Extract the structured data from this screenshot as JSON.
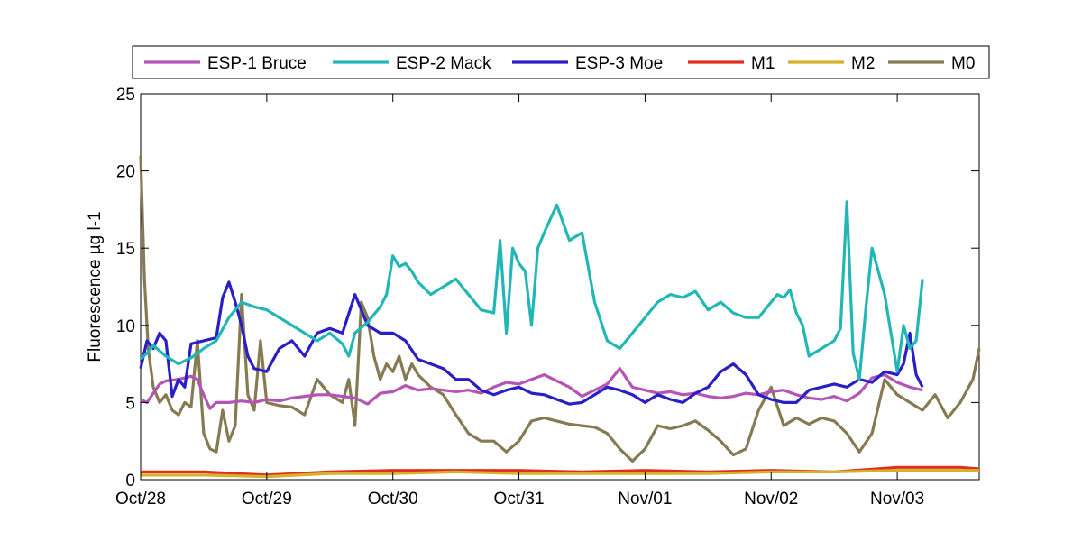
{
  "chart_data": {
    "type": "line",
    "title": "",
    "xlabel": "",
    "ylabel": "Fluorescence µg l-1",
    "ylim": [
      0,
      25
    ],
    "xlim": [
      0,
      6.65
    ],
    "yticks": [
      0,
      5,
      10,
      15,
      20,
      25
    ],
    "xticks": [
      {
        "value": 0,
        "label": "Oct/28"
      },
      {
        "value": 1,
        "label": "Oct/29"
      },
      {
        "value": 2,
        "label": "Oct/30"
      },
      {
        "value": 3,
        "label": "Oct/31"
      },
      {
        "value": 4,
        "label": "Nov/01"
      },
      {
        "value": 5,
        "label": "Nov/02"
      },
      {
        "value": 6,
        "label": "Nov/03"
      }
    ],
    "grid": false,
    "legend_position": "top, outside plot",
    "series": [
      {
        "name": "ESP-1 Bruce",
        "color": "#b455b6",
        "x": [
          0,
          0.05,
          0.1,
          0.15,
          0.2,
          0.3,
          0.4,
          0.45,
          0.5,
          0.55,
          0.6,
          0.7,
          0.8,
          0.9,
          1.0,
          1.1,
          1.2,
          1.3,
          1.4,
          1.5,
          1.6,
          1.7,
          1.8,
          1.9,
          2.0,
          2.1,
          2.2,
          2.3,
          2.4,
          2.5,
          2.6,
          2.7,
          2.8,
          2.9,
          3.0,
          3.1,
          3.2,
          3.3,
          3.4,
          3.5,
          3.6,
          3.7,
          3.8,
          3.9,
          4.0,
          4.1,
          4.2,
          4.3,
          4.4,
          4.5,
          4.6,
          4.7,
          4.8,
          4.9,
          5.0,
          5.1,
          5.2,
          5.3,
          5.4,
          5.5,
          5.6,
          5.7,
          5.8,
          5.9,
          6.0,
          6.1,
          6.2
        ],
        "y": [
          5.2,
          5.0,
          5.6,
          6.2,
          6.4,
          6.5,
          6.7,
          6.5,
          5.5,
          4.6,
          5.0,
          5.0,
          5.1,
          5.0,
          5.2,
          5.1,
          5.3,
          5.4,
          5.5,
          5.5,
          5.4,
          5.3,
          4.9,
          5.6,
          5.7,
          6.1,
          5.8,
          5.9,
          5.8,
          5.7,
          5.8,
          5.6,
          6.0,
          6.3,
          6.2,
          6.5,
          6.8,
          6.4,
          6.0,
          5.4,
          5.8,
          6.2,
          7.2,
          6.0,
          5.8,
          5.6,
          5.7,
          5.5,
          5.6,
          5.4,
          5.3,
          5.4,
          5.6,
          5.5,
          5.7,
          5.8,
          5.5,
          5.3,
          5.2,
          5.4,
          5.1,
          5.6,
          6.6,
          6.8,
          6.3,
          6.0,
          5.8
        ]
      },
      {
        "name": "ESP-2 Mack",
        "color": "#22b7b5",
        "x": [
          0,
          0.05,
          0.1,
          0.2,
          0.3,
          0.4,
          0.5,
          0.6,
          0.7,
          0.8,
          0.9,
          1.0,
          1.1,
          1.2,
          1.3,
          1.4,
          1.5,
          1.6,
          1.65,
          1.7,
          1.8,
          1.9,
          1.95,
          2.0,
          2.05,
          2.1,
          2.15,
          2.2,
          2.3,
          2.4,
          2.5,
          2.6,
          2.7,
          2.8,
          2.85,
          2.9,
          2.95,
          3.0,
          3.05,
          3.1,
          3.15,
          3.2,
          3.3,
          3.4,
          3.5,
          3.6,
          3.7,
          3.8,
          3.9,
          4.0,
          4.1,
          4.2,
          4.3,
          4.4,
          4.5,
          4.6,
          4.7,
          4.8,
          4.9,
          5.0,
          5.05,
          5.1,
          5.15,
          5.2,
          5.25,
          5.3,
          5.4,
          5.5,
          5.55,
          5.6,
          5.65,
          5.7,
          5.75,
          5.8,
          5.9,
          6.0,
          6.05,
          6.1,
          6.15,
          6.2
        ],
        "y": [
          7.8,
          8.2,
          8.7,
          8.0,
          7.5,
          7.9,
          8.5,
          9.0,
          10.5,
          11.5,
          11.2,
          11.0,
          10.5,
          10.0,
          9.5,
          9.0,
          9.5,
          8.8,
          8.0,
          9.5,
          10.2,
          11.2,
          12.0,
          14.5,
          13.8,
          14.0,
          13.5,
          12.8,
          12.0,
          12.5,
          13.0,
          12.0,
          11.0,
          10.8,
          15.5,
          9.5,
          15.0,
          14.0,
          13.5,
          10.0,
          15.0,
          16.0,
          17.8,
          15.5,
          16.0,
          11.5,
          9.0,
          8.5,
          9.5,
          10.5,
          11.5,
          12.0,
          11.8,
          12.2,
          11.0,
          11.5,
          10.8,
          10.5,
          10.5,
          11.5,
          12.0,
          11.8,
          12.3,
          10.8,
          10.0,
          8.0,
          8.5,
          9.0,
          9.8,
          18.0,
          8.2,
          6.5,
          11.0,
          15.0,
          12.0,
          7.0,
          10.0,
          8.5,
          9.0,
          13.0
        ]
      },
      {
        "name": "ESP-3 Moe",
        "color": "#2a1ec4",
        "x": [
          0,
          0.05,
          0.1,
          0.15,
          0.2,
          0.25,
          0.3,
          0.35,
          0.4,
          0.5,
          0.6,
          0.65,
          0.7,
          0.75,
          0.8,
          0.85,
          0.9,
          1.0,
          1.1,
          1.2,
          1.3,
          1.4,
          1.5,
          1.6,
          1.7,
          1.8,
          1.9,
          2.0,
          2.1,
          2.2,
          2.3,
          2.4,
          2.5,
          2.6,
          2.7,
          2.8,
          2.9,
          3.0,
          3.1,
          3.2,
          3.3,
          3.4,
          3.5,
          3.6,
          3.7,
          3.8,
          3.9,
          4.0,
          4.1,
          4.2,
          4.3,
          4.4,
          4.5,
          4.6,
          4.7,
          4.8,
          4.9,
          5.0,
          5.1,
          5.2,
          5.3,
          5.4,
          5.5,
          5.6,
          5.7,
          5.8,
          5.9,
          6.0,
          6.05,
          6.1,
          6.15,
          6.2
        ],
        "y": [
          7.2,
          9.0,
          8.5,
          9.5,
          9.0,
          5.4,
          6.5,
          6.0,
          8.8,
          9.0,
          9.2,
          11.8,
          12.8,
          11.5,
          10.0,
          8.0,
          7.2,
          7.0,
          8.5,
          9.0,
          8.0,
          9.5,
          9.8,
          9.5,
          12.0,
          10.0,
          9.5,
          9.5,
          9.0,
          7.8,
          7.5,
          7.2,
          6.5,
          6.5,
          5.8,
          5.5,
          5.8,
          6.0,
          5.6,
          5.5,
          5.2,
          4.9,
          5.0,
          5.5,
          6.0,
          5.8,
          5.5,
          5.0,
          5.5,
          5.2,
          5.0,
          5.6,
          6.0,
          7.0,
          7.5,
          6.8,
          5.5,
          5.2,
          5.0,
          5.0,
          5.8,
          6.0,
          6.2,
          6.0,
          6.5,
          6.3,
          7.0,
          6.8,
          7.5,
          9.5,
          6.8,
          6.0
        ]
      },
      {
        "name": "M1",
        "color": "#e0301e",
        "x": [
          0,
          0.5,
          1.0,
          1.5,
          2.0,
          2.5,
          3.0,
          3.5,
          4.0,
          4.5,
          5.0,
          5.5,
          6.0,
          6.5,
          6.65
        ],
        "y": [
          0.5,
          0.5,
          0.3,
          0.5,
          0.6,
          0.6,
          0.6,
          0.5,
          0.6,
          0.5,
          0.6,
          0.5,
          0.8,
          0.8,
          0.7
        ]
      },
      {
        "name": "M2",
        "color": "#d6b22a",
        "x": [
          0,
          0.5,
          1.0,
          1.5,
          2.0,
          2.5,
          3.0,
          3.5,
          4.0,
          4.5,
          5.0,
          5.5,
          6.0,
          6.5,
          6.65
        ],
        "y": [
          0.3,
          0.3,
          0.2,
          0.4,
          0.4,
          0.5,
          0.4,
          0.4,
          0.4,
          0.4,
          0.5,
          0.5,
          0.6,
          0.6,
          0.6
        ]
      },
      {
        "name": "M0",
        "color": "#857a52",
        "x": [
          0,
          0.03,
          0.06,
          0.1,
          0.15,
          0.2,
          0.25,
          0.3,
          0.35,
          0.4,
          0.45,
          0.5,
          0.55,
          0.6,
          0.65,
          0.7,
          0.75,
          0.8,
          0.85,
          0.9,
          0.95,
          1.0,
          1.1,
          1.2,
          1.3,
          1.4,
          1.5,
          1.6,
          1.65,
          1.7,
          1.75,
          1.8,
          1.85,
          1.9,
          1.95,
          2.0,
          2.05,
          2.1,
          2.15,
          2.2,
          2.3,
          2.4,
          2.5,
          2.6,
          2.7,
          2.8,
          2.9,
          3.0,
          3.1,
          3.2,
          3.3,
          3.4,
          3.5,
          3.6,
          3.7,
          3.8,
          3.9,
          4.0,
          4.1,
          4.2,
          4.3,
          4.4,
          4.5,
          4.6,
          4.7,
          4.8,
          4.9,
          5.0,
          5.1,
          5.2,
          5.3,
          5.4,
          5.5,
          5.6,
          5.7,
          5.8,
          5.9,
          6.0,
          6.1,
          6.2,
          6.3,
          6.4,
          6.5,
          6.6,
          6.65
        ],
        "y": [
          21,
          13,
          8.5,
          6.0,
          5.0,
          5.5,
          4.5,
          4.2,
          5.0,
          4.7,
          9.0,
          3.0,
          2.0,
          1.8,
          4.5,
          2.5,
          3.5,
          12.0,
          5.5,
          4.5,
          9.0,
          5.0,
          4.8,
          4.7,
          4.2,
          6.5,
          5.5,
          5.0,
          6.5,
          3.5,
          11.5,
          10.5,
          8.0,
          6.5,
          7.5,
          7.0,
          8.0,
          6.5,
          7.5,
          6.8,
          6.0,
          5.5,
          4.2,
          3.0,
          2.5,
          2.5,
          1.8,
          2.5,
          3.8,
          4.0,
          3.8,
          3.6,
          3.5,
          3.4,
          3.0,
          2.0,
          1.2,
          2.0,
          3.5,
          3.3,
          3.5,
          3.8,
          3.2,
          2.5,
          1.6,
          2.0,
          4.5,
          6.0,
          3.5,
          4.0,
          3.6,
          4.0,
          3.8,
          3.0,
          1.8,
          3.0,
          6.5,
          5.5,
          5.0,
          4.5,
          5.5,
          4.0,
          5.0,
          6.5,
          8.5
        ]
      }
    ]
  }
}
